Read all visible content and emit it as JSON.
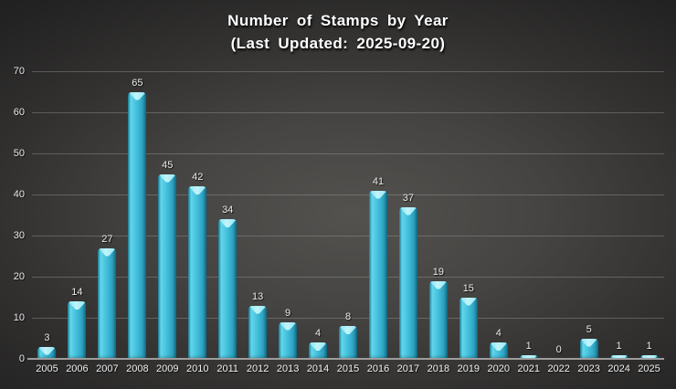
{
  "title": {
    "line1": "Number of Stamps by Year",
    "line2": "(Last Updated: 2025-09-20)"
  },
  "chart_data": {
    "type": "bar",
    "title": "Number of Stamps by Year (Last Updated: 2025-09-20)",
    "categories": [
      "2005",
      "2006",
      "2007",
      "2008",
      "2009",
      "2010",
      "2011",
      "2012",
      "2013",
      "2014",
      "2015",
      "2016",
      "2017",
      "2018",
      "2019",
      "2020",
      "2021",
      "2022",
      "2023",
      "2024",
      "2025"
    ],
    "values": [
      3,
      14,
      27,
      65,
      45,
      42,
      34,
      13,
      9,
      4,
      8,
      41,
      37,
      19,
      15,
      4,
      1,
      0,
      5,
      1,
      1
    ],
    "xlabel": "",
    "ylabel": "",
    "ylim": [
      0,
      70
    ],
    "yticks": [
      0,
      10,
      20,
      30,
      40,
      50,
      60,
      70
    ],
    "grid": true,
    "legend": false,
    "data_labels": true,
    "bar_color": "#3fc0dc",
    "bar_edge_color": "#15718c",
    "bar_cap_color": "#aeeef7",
    "label_color": "#eaeaea",
    "grid_color": "#a5a5a5",
    "background_center": "#53524f",
    "background_edge": "#1a1a1a",
    "title_color": "#ffffff"
  }
}
